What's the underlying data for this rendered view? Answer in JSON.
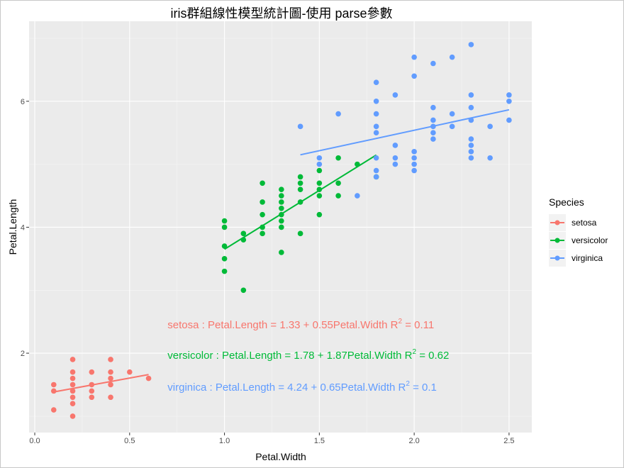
{
  "chart_data": {
    "type": "scatter",
    "title": "iris群組線性模型統計圖-使用 parse參數",
    "xlabel": "Petal.Width",
    "ylabel": "Petal.Length",
    "xlim": [
      -0.03,
      2.62
    ],
    "ylim": [
      0.74,
      7.27
    ],
    "xticks": [
      "0.0",
      "0.5",
      "1.0",
      "1.5",
      "2.0",
      "2.5"
    ],
    "xtick_values": [
      0,
      0.5,
      1,
      1.5,
      2,
      2.5
    ],
    "yticks": [
      "2",
      "4",
      "6"
    ],
    "ytick_values": [
      2,
      4,
      6
    ],
    "grid": true,
    "legend": {
      "title": "Species",
      "position": "right"
    },
    "series": [
      {
        "name": "setosa",
        "color": "#F8766D",
        "points": [
          [
            0.1,
            1.5
          ],
          [
            0.1,
            1.4
          ],
          [
            0.1,
            1.1
          ],
          [
            0.2,
            1.9
          ],
          [
            0.2,
            1.7
          ],
          [
            0.2,
            1.6
          ],
          [
            0.2,
            1.5
          ],
          [
            0.2,
            1.4
          ],
          [
            0.2,
            1.3
          ],
          [
            0.2,
            1.2
          ],
          [
            0.2,
            1.0
          ],
          [
            0.3,
            1.7
          ],
          [
            0.3,
            1.5
          ],
          [
            0.3,
            1.4
          ],
          [
            0.3,
            1.3
          ],
          [
            0.4,
            1.9
          ],
          [
            0.4,
            1.7
          ],
          [
            0.4,
            1.6
          ],
          [
            0.4,
            1.5
          ],
          [
            0.4,
            1.3
          ],
          [
            0.5,
            1.7
          ],
          [
            0.6,
            1.6
          ]
        ],
        "fit": {
          "intercept": 1.33,
          "slope": 0.55,
          "r2": "0.11",
          "x_range": [
            0.1,
            0.6
          ]
        },
        "annotation": {
          "x": 0.7,
          "y": 2.45,
          "lhs": "setosa : Petal.Length = 1.33 + 0.55Petal.Width R",
          "sup": "2",
          "rhs": " = 0.11"
        }
      },
      {
        "name": "versicolor",
        "color": "#00BA38",
        "points": [
          [
            1.0,
            4.1
          ],
          [
            1.0,
            4.0
          ],
          [
            1.0,
            3.7
          ],
          [
            1.0,
            3.5
          ],
          [
            1.0,
            3.3
          ],
          [
            1.1,
            3.9
          ],
          [
            1.1,
            3.8
          ],
          [
            1.1,
            3.0
          ],
          [
            1.2,
            4.7
          ],
          [
            1.2,
            4.4
          ],
          [
            1.2,
            4.2
          ],
          [
            1.2,
            4.0
          ],
          [
            1.2,
            3.9
          ],
          [
            1.3,
            4.6
          ],
          [
            1.3,
            4.5
          ],
          [
            1.3,
            4.4
          ],
          [
            1.3,
            4.3
          ],
          [
            1.3,
            4.2
          ],
          [
            1.3,
            4.1
          ],
          [
            1.3,
            4.0
          ],
          [
            1.3,
            3.6
          ],
          [
            1.4,
            4.8
          ],
          [
            1.4,
            4.7
          ],
          [
            1.4,
            4.6
          ],
          [
            1.4,
            4.4
          ],
          [
            1.4,
            3.9
          ],
          [
            1.5,
            4.9
          ],
          [
            1.5,
            4.7
          ],
          [
            1.5,
            4.6
          ],
          [
            1.5,
            4.5
          ],
          [
            1.5,
            4.2
          ],
          [
            1.6,
            5.1
          ],
          [
            1.6,
            4.7
          ],
          [
            1.6,
            4.5
          ],
          [
            1.7,
            5.0
          ],
          [
            1.8,
            4.8
          ]
        ],
        "fit": {
          "intercept": 1.78,
          "slope": 1.87,
          "r2": "0.62",
          "x_range": [
            1.0,
            1.8
          ]
        },
        "annotation": {
          "x": 0.7,
          "y": 1.97,
          "lhs": "versicolor : Petal.Length = 1.78 + 1.87Petal.Width R",
          "sup": "2",
          "rhs": " = 0.62"
        }
      },
      {
        "name": "virginica",
        "color": "#619CFF",
        "points": [
          [
            1.4,
            5.6
          ],
          [
            1.5,
            5.1
          ],
          [
            1.5,
            5.0
          ],
          [
            1.6,
            5.8
          ],
          [
            1.7,
            4.5
          ],
          [
            1.8,
            6.3
          ],
          [
            1.8,
            6.0
          ],
          [
            1.8,
            5.8
          ],
          [
            1.8,
            5.6
          ],
          [
            1.8,
            5.5
          ],
          [
            1.8,
            5.1
          ],
          [
            1.8,
            4.9
          ],
          [
            1.8,
            4.8
          ],
          [
            1.9,
            6.1
          ],
          [
            1.9,
            5.3
          ],
          [
            1.9,
            5.1
          ],
          [
            1.9,
            5.0
          ],
          [
            2.0,
            6.7
          ],
          [
            2.0,
            6.4
          ],
          [
            2.0,
            5.2
          ],
          [
            2.0,
            5.1
          ],
          [
            2.0,
            5.0
          ],
          [
            2.0,
            4.9
          ],
          [
            2.1,
            6.6
          ],
          [
            2.1,
            5.9
          ],
          [
            2.1,
            5.7
          ],
          [
            2.1,
            5.6
          ],
          [
            2.1,
            5.5
          ],
          [
            2.1,
            5.4
          ],
          [
            2.2,
            6.7
          ],
          [
            2.2,
            5.8
          ],
          [
            2.2,
            5.6
          ],
          [
            2.3,
            6.9
          ],
          [
            2.3,
            6.1
          ],
          [
            2.3,
            5.9
          ],
          [
            2.3,
            5.7
          ],
          [
            2.3,
            5.4
          ],
          [
            2.3,
            5.3
          ],
          [
            2.3,
            5.2
          ],
          [
            2.3,
            5.1
          ],
          [
            2.4,
            5.6
          ],
          [
            2.4,
            5.1
          ],
          [
            2.5,
            6.1
          ],
          [
            2.5,
            6.0
          ],
          [
            2.5,
            5.7
          ]
        ],
        "fit": {
          "intercept": 4.24,
          "slope": 0.65,
          "r2": "0.1",
          "x_range": [
            1.4,
            2.5
          ]
        },
        "annotation": {
          "x": 0.7,
          "y": 1.46,
          "lhs": "virginica : Petal.Length = 4.24 + 0.65Petal.Width R",
          "sup": "2",
          "rhs": " = 0.1"
        }
      }
    ]
  }
}
